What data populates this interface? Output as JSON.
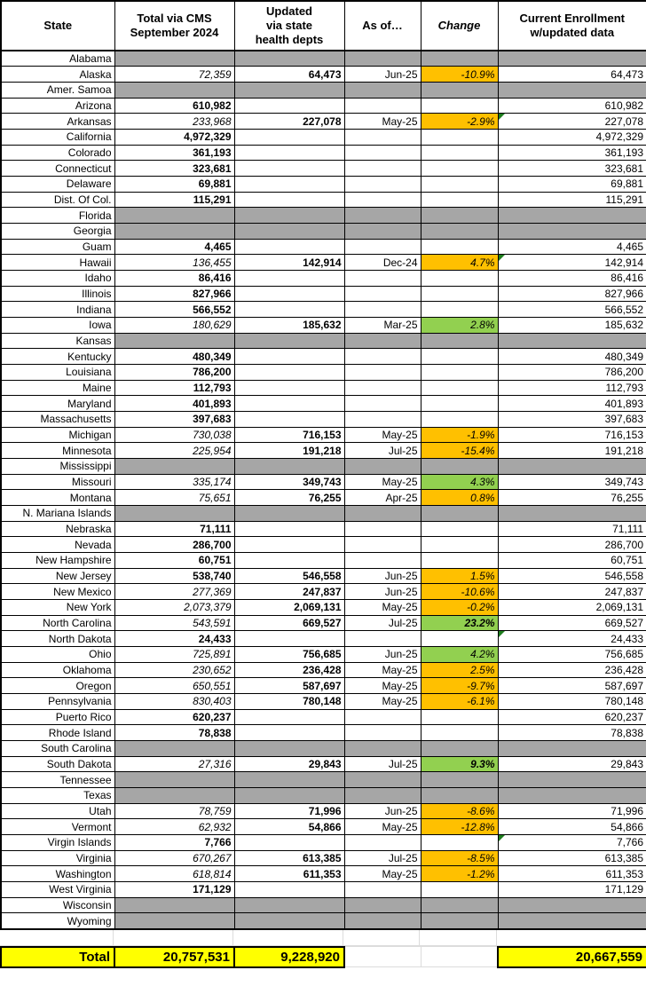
{
  "colors": {
    "orange": "#FFC000",
    "green": "#92D050",
    "gray": "#A6A6A6",
    "yellow": "#FFFF00"
  },
  "table": {
    "headers": {
      "state": "State",
      "cms": "Total via CMS\nSeptember 2024",
      "updated": "Updated\nvia state\nhealth depts",
      "as_of": "As of…",
      "change": "Change",
      "current": "Current Enrollment\nw/updated data"
    },
    "rows": [
      {
        "state": "Alabama",
        "gray": true
      },
      {
        "state": "Alaska",
        "cms": "72,359",
        "cms_italic": true,
        "updated": "64,473",
        "as_of": "Jun-25",
        "change": "-10.9%",
        "change_bg": "orange",
        "current": "64,473"
      },
      {
        "state": "Amer. Samoa",
        "gray": true
      },
      {
        "state": "Arizona",
        "cms": "610,982",
        "cms_bold": true,
        "current": "610,982"
      },
      {
        "state": "Arkansas",
        "cms": "233,968",
        "cms_italic": true,
        "updated": "227,078",
        "as_of": "May-25",
        "change": "-2.9%",
        "change_bg": "orange",
        "current": "227,078",
        "flag": true
      },
      {
        "state": "California",
        "cms": "4,972,329",
        "cms_bold": true,
        "current": "4,972,329"
      },
      {
        "state": "Colorado",
        "cms": "361,193",
        "cms_bold": true,
        "current": "361,193"
      },
      {
        "state": "Connecticut",
        "cms": "323,681",
        "cms_bold": true,
        "current": "323,681"
      },
      {
        "state": "Delaware",
        "cms": "69,881",
        "cms_bold": true,
        "current": "69,881"
      },
      {
        "state": "Dist. Of Col.",
        "cms": "115,291",
        "cms_bold": true,
        "current": "115,291"
      },
      {
        "state": "Florida",
        "gray": true
      },
      {
        "state": "Georgia",
        "gray": true
      },
      {
        "state": "Guam",
        "cms": "4,465",
        "cms_bold": true,
        "current": "4,465"
      },
      {
        "state": "Hawaii",
        "cms": "136,455",
        "cms_italic": true,
        "updated": "142,914",
        "as_of": "Dec-24",
        "change": "4.7%",
        "change_bg": "orange",
        "current": "142,914",
        "flag": true
      },
      {
        "state": "Idaho",
        "cms": "86,416",
        "cms_bold": true,
        "current": "86,416"
      },
      {
        "state": "Illinois",
        "cms": "827,966",
        "cms_bold": true,
        "current": "827,966"
      },
      {
        "state": "Indiana",
        "cms": "566,552",
        "cms_bold": true,
        "current": "566,552"
      },
      {
        "state": "Iowa",
        "cms": "180,629",
        "cms_italic": true,
        "updated": "185,632",
        "as_of": "Mar-25",
        "change": "2.8%",
        "change_bg": "green",
        "current": "185,632"
      },
      {
        "state": "Kansas",
        "gray": true
      },
      {
        "state": "Kentucky",
        "cms": "480,349",
        "cms_bold": true,
        "current": "480,349"
      },
      {
        "state": "Louisiana",
        "cms": "786,200",
        "cms_bold": true,
        "current": "786,200"
      },
      {
        "state": "Maine",
        "cms": "112,793",
        "cms_bold": true,
        "current": "112,793"
      },
      {
        "state": "Maryland",
        "cms": "401,893",
        "cms_bold": true,
        "current": "401,893"
      },
      {
        "state": "Massachusetts",
        "cms": "397,683",
        "cms_bold": true,
        "current": "397,683"
      },
      {
        "state": "Michigan",
        "cms": "730,038",
        "cms_italic": true,
        "updated": "716,153",
        "as_of": "May-25",
        "change": "-1.9%",
        "change_bg": "orange",
        "current": "716,153"
      },
      {
        "state": "Minnesota",
        "cms": "225,954",
        "cms_italic": true,
        "updated": "191,218",
        "as_of": "Jul-25",
        "change": "-15.4%",
        "change_bg": "orange",
        "current": "191,218"
      },
      {
        "state": "Mississippi",
        "gray": true
      },
      {
        "state": "Missouri",
        "cms": "335,174",
        "cms_italic": true,
        "updated": "349,743",
        "as_of": "May-25",
        "change": "4.3%",
        "change_bg": "green",
        "current": "349,743"
      },
      {
        "state": "Montana",
        "cms": "75,651",
        "cms_italic": true,
        "updated": "76,255",
        "as_of": "Apr-25",
        "change": "0.8%",
        "change_bg": "orange",
        "current": "76,255"
      },
      {
        "state": "N. Mariana Islands",
        "gray": true
      },
      {
        "state": "Nebraska",
        "cms": "71,111",
        "cms_bold": true,
        "current": "71,111"
      },
      {
        "state": "Nevada",
        "cms": "286,700",
        "cms_bold": true,
        "current": "286,700"
      },
      {
        "state": "New Hampshire",
        "cms": "60,751",
        "cms_bold": true,
        "current": "60,751"
      },
      {
        "state": "New Jersey",
        "cms": "538,740",
        "cms_bold": true,
        "updated": "546,558",
        "as_of": "Jun-25",
        "change": "1.5%",
        "change_bg": "orange",
        "current": "546,558"
      },
      {
        "state": "New Mexico",
        "cms": "277,369",
        "cms_italic": true,
        "updated": "247,837",
        "as_of": "Jun-25",
        "change": "-10.6%",
        "change_bg": "orange",
        "current": "247,837"
      },
      {
        "state": "New York",
        "cms": "2,073,379",
        "cms_italic": true,
        "updated": "2,069,131",
        "as_of": "May-25",
        "change": "-0.2%",
        "change_bg": "orange",
        "current": "2,069,131"
      },
      {
        "state": "North Carolina",
        "cms": "543,591",
        "cms_italic": true,
        "updated": "669,527",
        "as_of": "Jul-25",
        "change": "23.2%",
        "change_bg": "green",
        "change_bold": true,
        "current": "669,527"
      },
      {
        "state": "North Dakota",
        "cms": "24,433",
        "cms_bold": true,
        "current": "24,433",
        "flag": true
      },
      {
        "state": "Ohio",
        "cms": "725,891",
        "cms_italic": true,
        "updated": "756,685",
        "as_of": "Jun-25",
        "change": "4.2%",
        "change_bg": "green",
        "current": "756,685"
      },
      {
        "state": "Oklahoma",
        "cms": "230,652",
        "cms_italic": true,
        "updated": "236,428",
        "as_of": "May-25",
        "change": "2.5%",
        "change_bg": "orange",
        "current": "236,428"
      },
      {
        "state": "Oregon",
        "cms": "650,551",
        "cms_italic": true,
        "updated": "587,697",
        "as_of": "May-25",
        "change": "-9.7%",
        "change_bg": "orange",
        "current": "587,697"
      },
      {
        "state": "Pennsylvania",
        "cms": "830,403",
        "cms_italic": true,
        "updated": "780,148",
        "as_of": "May-25",
        "change": "-6.1%",
        "change_bg": "orange",
        "current": "780,148"
      },
      {
        "state": "Puerto Rico",
        "cms": "620,237",
        "cms_bold": true,
        "current": "620,237"
      },
      {
        "state": "Rhode Island",
        "cms": "78,838",
        "cms_bold": true,
        "current": "78,838"
      },
      {
        "state": "South Carolina",
        "gray": true
      },
      {
        "state": "South Dakota",
        "cms": "27,316",
        "cms_italic": true,
        "updated": "29,843",
        "as_of": "Jul-25",
        "change": "9.3%",
        "change_bg": "green",
        "change_bold": true,
        "current": "29,843"
      },
      {
        "state": "Tennessee",
        "gray": true
      },
      {
        "state": "Texas",
        "gray": true
      },
      {
        "state": "Utah",
        "cms": "78,759",
        "cms_italic": true,
        "updated": "71,996",
        "as_of": "Jun-25",
        "change": "-8.6%",
        "change_bg": "orange",
        "current": "71,996"
      },
      {
        "state": "Vermont",
        "cms": "62,932",
        "cms_italic": true,
        "updated": "54,866",
        "as_of": "May-25",
        "change": "-12.8%",
        "change_bg": "orange",
        "current": "54,866"
      },
      {
        "state": "Virgin Islands",
        "cms": "7,766",
        "cms_bold": true,
        "current": "7,766",
        "flag": true
      },
      {
        "state": "Virginia",
        "cms": "670,267",
        "cms_italic": true,
        "updated": "613,385",
        "as_of": "Jul-25",
        "change": "-8.5%",
        "change_bg": "orange",
        "current": "613,385"
      },
      {
        "state": "Washington",
        "cms": "618,814",
        "cms_italic": true,
        "updated": "611,353",
        "as_of": "May-25",
        "change": "-1.2%",
        "change_bg": "orange",
        "current": "611,353"
      },
      {
        "state": "West Virginia",
        "cms": "171,129",
        "cms_bold": true,
        "current": "171,129"
      },
      {
        "state": "Wisconsin",
        "gray": true
      },
      {
        "state": "Wyoming",
        "gray": true
      }
    ],
    "total": {
      "label": "Total",
      "cms_total": "20,757,531",
      "updated_total": "9,228,920",
      "current_total": "20,667,559"
    }
  }
}
